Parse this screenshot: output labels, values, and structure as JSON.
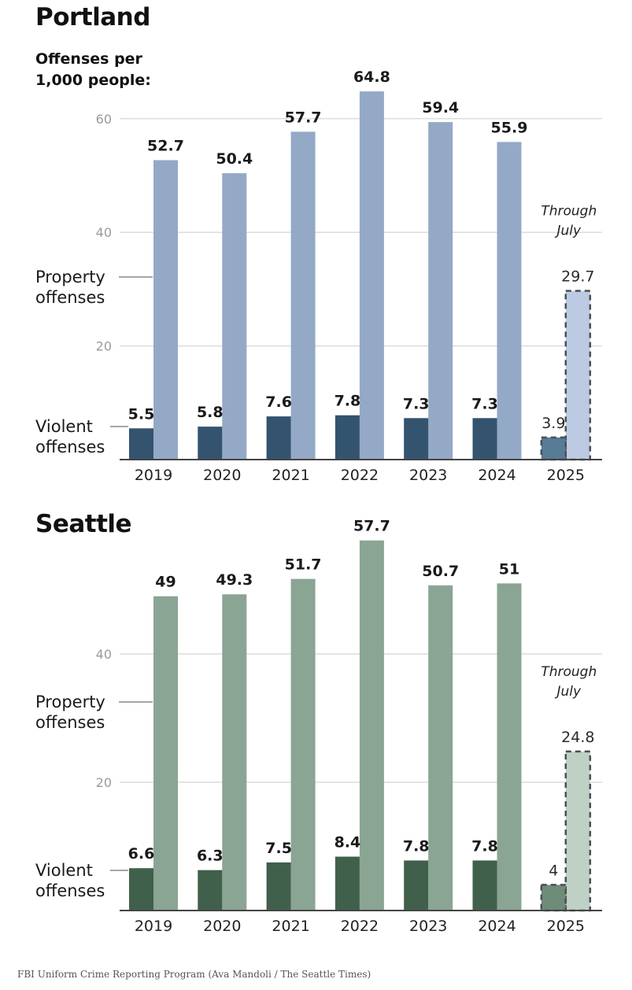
{
  "chart_data": [
    {
      "type": "bar",
      "title": "Portland",
      "subtitle_lines": [
        "Offenses per",
        "1,000 people:"
      ],
      "categories": [
        "2019",
        "2020",
        "2021",
        "2022",
        "2023",
        "2024",
        "2025"
      ],
      "series": [
        {
          "name": "Violent offenses",
          "label_lines": [
            "Violent",
            "offenses"
          ],
          "values": [
            5.5,
            5.8,
            7.6,
            7.8,
            7.3,
            7.3,
            3.9
          ],
          "labels": [
            "5.5",
            "5.8",
            "7.6",
            "7.8",
            "7.3",
            "7.3",
            "3.9"
          ],
          "color": "#34536f",
          "partial_color": "#587b96"
        },
        {
          "name": "Property offenses",
          "label_lines": [
            "Property",
            "offenses"
          ],
          "values": [
            52.7,
            50.4,
            57.7,
            64.8,
            59.4,
            55.9,
            29.7
          ],
          "labels": [
            "52.7",
            "50.4",
            "57.7",
            "64.8",
            "59.4",
            "55.9",
            "29.7"
          ],
          "color": "#94a9c6",
          "partial_color": "#bccbe3"
        }
      ],
      "partial_category": "2025",
      "partial_note_lines": [
        "Through",
        "July"
      ],
      "yticks": [
        20,
        40,
        60
      ],
      "ylim": [
        0,
        67
      ],
      "grid": true,
      "xlabel": "",
      "ylabel": ""
    },
    {
      "type": "bar",
      "title": "Seattle",
      "categories": [
        "2019",
        "2020",
        "2021",
        "2022",
        "2023",
        "2024",
        "2025"
      ],
      "series": [
        {
          "name": "Violent offenses",
          "label_lines": [
            "Violent",
            "offenses"
          ],
          "values": [
            6.6,
            6.3,
            7.5,
            8.4,
            7.8,
            7.8,
            4
          ],
          "labels": [
            "6.6",
            "6.3",
            "7.5",
            "8.4",
            "7.8",
            "7.8",
            "4"
          ],
          "color": "#40604b",
          "partial_color": "#6f8c78"
        },
        {
          "name": "Property offenses",
          "label_lines": [
            "Property",
            "offenses"
          ],
          "values": [
            49,
            49.3,
            51.7,
            57.7,
            50.7,
            51,
            24.8
          ],
          "labels": [
            "49",
            "49.3",
            "51.7",
            "57.7",
            "50.7",
            "51",
            "24.8"
          ],
          "color": "#8aa593",
          "partial_color": "#bfd0c5"
        }
      ],
      "partial_category": "2025",
      "partial_note_lines": [
        "Through",
        "July"
      ],
      "yticks": [
        20,
        40
      ],
      "ylim": [
        0,
        60
      ],
      "grid": true,
      "xlabel": "",
      "ylabel": ""
    }
  ],
  "source": "FBI Uniform Crime Reporting Program (Ava Mandoli / The Seattle Times)"
}
